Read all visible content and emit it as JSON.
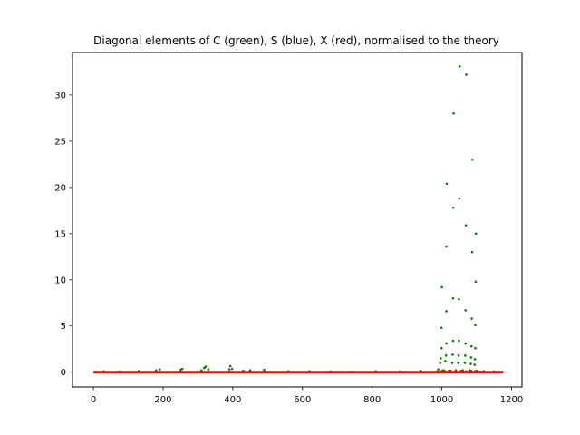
{
  "chart_data": {
    "type": "scatter",
    "title": "Diagonal elements of C (green), S (blue), X (red), normalised to the theory",
    "xlabel": "",
    "ylabel": "",
    "xlim": [
      -60,
      1230
    ],
    "ylim": [
      -1.6,
      34.6
    ],
    "xticks": [
      0,
      200,
      400,
      600,
      800,
      1000,
      1200
    ],
    "yticks": [
      0,
      5,
      10,
      15,
      20,
      25,
      30
    ],
    "grid": false,
    "legend": "none",
    "colors": {
      "C": "#008000",
      "S": "#0000ff",
      "X": "#ff0000"
    },
    "series": [
      {
        "color": "#008000",
        "points": [
          [
            5,
            0.05
          ],
          [
            30,
            0.1
          ],
          [
            75,
            0.08
          ],
          [
            130,
            0.12
          ],
          [
            180,
            0.2
          ],
          [
            190,
            0.3
          ],
          [
            250,
            0.25
          ],
          [
            255,
            0.35
          ],
          [
            310,
            0.2
          ],
          [
            318,
            0.45
          ],
          [
            322,
            0.6
          ],
          [
            330,
            0.3
          ],
          [
            390,
            0.3
          ],
          [
            393,
            0.65
          ],
          [
            398,
            0.35
          ],
          [
            430,
            0.15
          ],
          [
            450,
            0.2
          ],
          [
            490,
            0.25
          ],
          [
            560,
            0.1
          ],
          [
            620,
            0.1
          ],
          [
            680,
            0.08
          ],
          [
            740,
            0.05
          ],
          [
            810,
            0.1
          ],
          [
            880,
            0.08
          ],
          [
            940,
            0.12
          ],
          [
            990,
            0.3
          ],
          [
            995,
            1.0
          ],
          [
            997,
            1.5
          ],
          [
            999,
            2.6
          ],
          [
            999,
            4.8
          ],
          [
            1000,
            9.2
          ],
          [
            1010,
            1.2
          ],
          [
            1012,
            1.8
          ],
          [
            1013,
            3.1
          ],
          [
            1013,
            6.6
          ],
          [
            1013,
            13.6
          ],
          [
            1014,
            20.4
          ],
          [
            1030,
            1.0
          ],
          [
            1031,
            1.9
          ],
          [
            1032,
            3.4
          ],
          [
            1032,
            8.0
          ],
          [
            1033,
            17.8
          ],
          [
            1034,
            28.0
          ],
          [
            1047,
            1.0
          ],
          [
            1048,
            1.8
          ],
          [
            1049,
            3.4
          ],
          [
            1049,
            7.9
          ],
          [
            1050,
            18.8
          ],
          [
            1051,
            33.1
          ],
          [
            1066,
            1.0
          ],
          [
            1067,
            1.8
          ],
          [
            1068,
            3.1
          ],
          [
            1068,
            6.7
          ],
          [
            1069,
            15.9
          ],
          [
            1070,
            32.2
          ],
          [
            1083,
            0.9
          ],
          [
            1084,
            1.6
          ],
          [
            1085,
            2.8
          ],
          [
            1086,
            5.8
          ],
          [
            1087,
            13.0
          ],
          [
            1088,
            23.0
          ],
          [
            1094,
            0.8
          ],
          [
            1095,
            1.4
          ],
          [
            1096,
            2.6
          ],
          [
            1096,
            5.1
          ],
          [
            1097,
            9.8
          ],
          [
            1098,
            15.0
          ],
          [
            1005,
            0.2
          ],
          [
            1020,
            0.15
          ],
          [
            1040,
            0.2
          ],
          [
            1060,
            0.2
          ],
          [
            1080,
            0.2
          ],
          [
            1100,
            0.15
          ],
          [
            1120,
            0.1
          ],
          [
            1150,
            0.08
          ]
        ]
      },
      {
        "color": "#0000ff",
        "points": [
          [
            100,
            0.0
          ],
          [
            300,
            0.02
          ],
          [
            500,
            0.0
          ],
          [
            700,
            0.01
          ],
          [
            900,
            0.0
          ],
          [
            1000,
            0.02
          ],
          [
            1100,
            0.01
          ]
        ]
      },
      {
        "color": "#ff0000",
        "line_x": [
          0,
          1176
        ],
        "line_y": 0.0,
        "points": [
          [
            985,
            0.08
          ],
          [
            1000,
            0.12
          ],
          [
            1010,
            0.1
          ],
          [
            1025,
            0.15
          ],
          [
            1040,
            0.12
          ],
          [
            1055,
            0.14
          ],
          [
            1070,
            0.1
          ],
          [
            1085,
            0.12
          ],
          [
            1095,
            0.1
          ],
          [
            1110,
            0.06
          ]
        ]
      }
    ]
  }
}
